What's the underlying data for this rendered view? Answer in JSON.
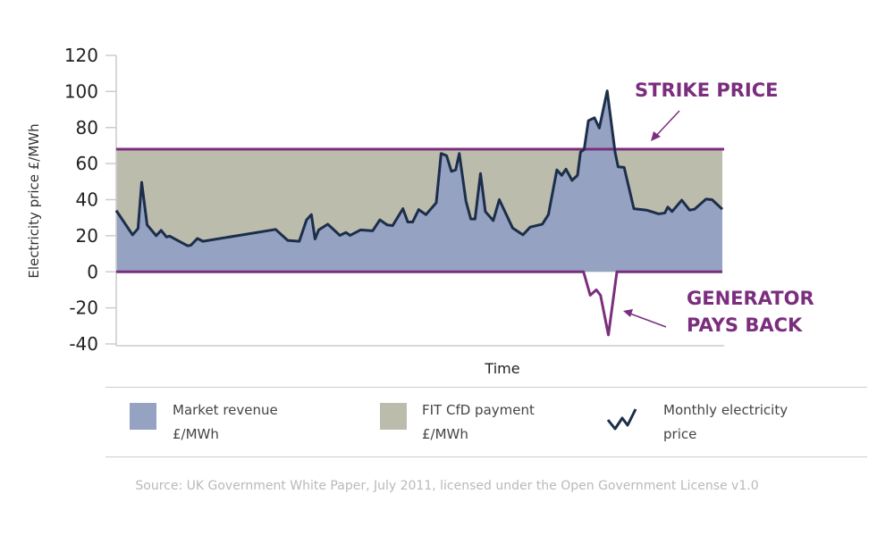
{
  "chart_data": {
    "type": "area",
    "xlabel": "Time",
    "ylabel": "Electricity price £/MWh",
    "ylim": [
      -40,
      120
    ],
    "xlim": [
      0,
      100
    ],
    "yticks": [
      120,
      100,
      80,
      60,
      40,
      20,
      0,
      -20,
      -40
    ],
    "strike_price": 68,
    "series": [
      {
        "name": "Monthly electricity price",
        "x": [
          0,
          2.7,
          3.6,
          4.2,
          5.1,
          6.6,
          7.4,
          8.3,
          8.8,
          11.8,
          12.3,
          13.4,
          14.3,
          26.3,
          28.3,
          30.2,
          31.4,
          32.2,
          32.8,
          33.4,
          34.9,
          36.9,
          37.9,
          38.6,
          40.3,
          42.3,
          43.5,
          44.7,
          45.6,
          47.3,
          48.1,
          48.9,
          49.9,
          51.1,
          52.8,
          53.6,
          54.5,
          55.3,
          56.0,
          56.6,
          57.7,
          58.5,
          59.2,
          60.1,
          60.9,
          62.2,
          63.2,
          65.4,
          67.1,
          68.3,
          70.3,
          71.3,
          72.7,
          73.5,
          74.2,
          75.2,
          76.1,
          76.6,
          77.2,
          77.9,
          78.9,
          79.7,
          81.0,
          82.3,
          82.8,
          83.8,
          85.4,
          87.5,
          89.5,
          90.5,
          91.0,
          91.7,
          93.3,
          94.6,
          95.4,
          97.3,
          98.3,
          100
        ],
        "values": [
          34,
          20.5,
          24,
          49.6,
          26,
          20,
          23,
          19.3,
          19.8,
          14.4,
          14.7,
          18.5,
          16.9,
          23.5,
          17.4,
          16.9,
          28.8,
          31.7,
          18.2,
          23.2,
          26.4,
          20.2,
          21.8,
          20.2,
          23.2,
          22.7,
          28.8,
          26,
          25.6,
          35,
          27.6,
          27.6,
          34.5,
          31.7,
          38.3,
          65.6,
          64.4,
          55.7,
          56.5,
          65.6,
          39.2,
          29.3,
          29.3,
          54.5,
          33.4,
          28.4,
          40,
          24.3,
          20.5,
          24.8,
          26.4,
          31.7,
          56.5,
          53.5,
          56.9,
          50.7,
          53.5,
          66.4,
          67.8,
          83.8,
          85.4,
          79.7,
          100.3,
          66.4,
          58.2,
          57.9,
          35,
          34.2,
          32.1,
          32.6,
          35.9,
          33.4,
          39.7,
          34.2,
          34.7,
          40.3,
          40,
          34.7
        ]
      },
      {
        "name": "Generator pays back",
        "x": [
          0,
          77.1,
          78.2,
          79.2,
          79.9,
          81.2,
          82.6,
          100
        ],
        "values": [
          0,
          0,
          -13,
          -10,
          -13,
          -35,
          0,
          0
        ]
      }
    ],
    "annotations": [
      "STRIKE PRICE",
      "GENERATOR PAYS BACK"
    ],
    "annotation_lines": {
      "strike": "STRIKE PRICE",
      "gen1": "GENERATOR",
      "gen2": "PAYS BACK"
    },
    "legend": [
      {
        "label1": "Market revenue",
        "label2": "£/MWh",
        "color": "#95a2c2"
      },
      {
        "label1": "FIT CfD payment",
        "label2": "£/MWh",
        "color": "#bcbcad"
      },
      {
        "label1": "Monthly electricity",
        "label2": "price",
        "color": "#1c2e4a"
      }
    ],
    "legend_placement": "bottom",
    "source": "Source: UK Government White Paper, July 2011, licensed under the Open Government License v1.0",
    "colors": {
      "purple": "#7b2d7e",
      "line": "#1c2e4a",
      "market": "#95a2c2",
      "fit": "#bcbcad"
    }
  }
}
